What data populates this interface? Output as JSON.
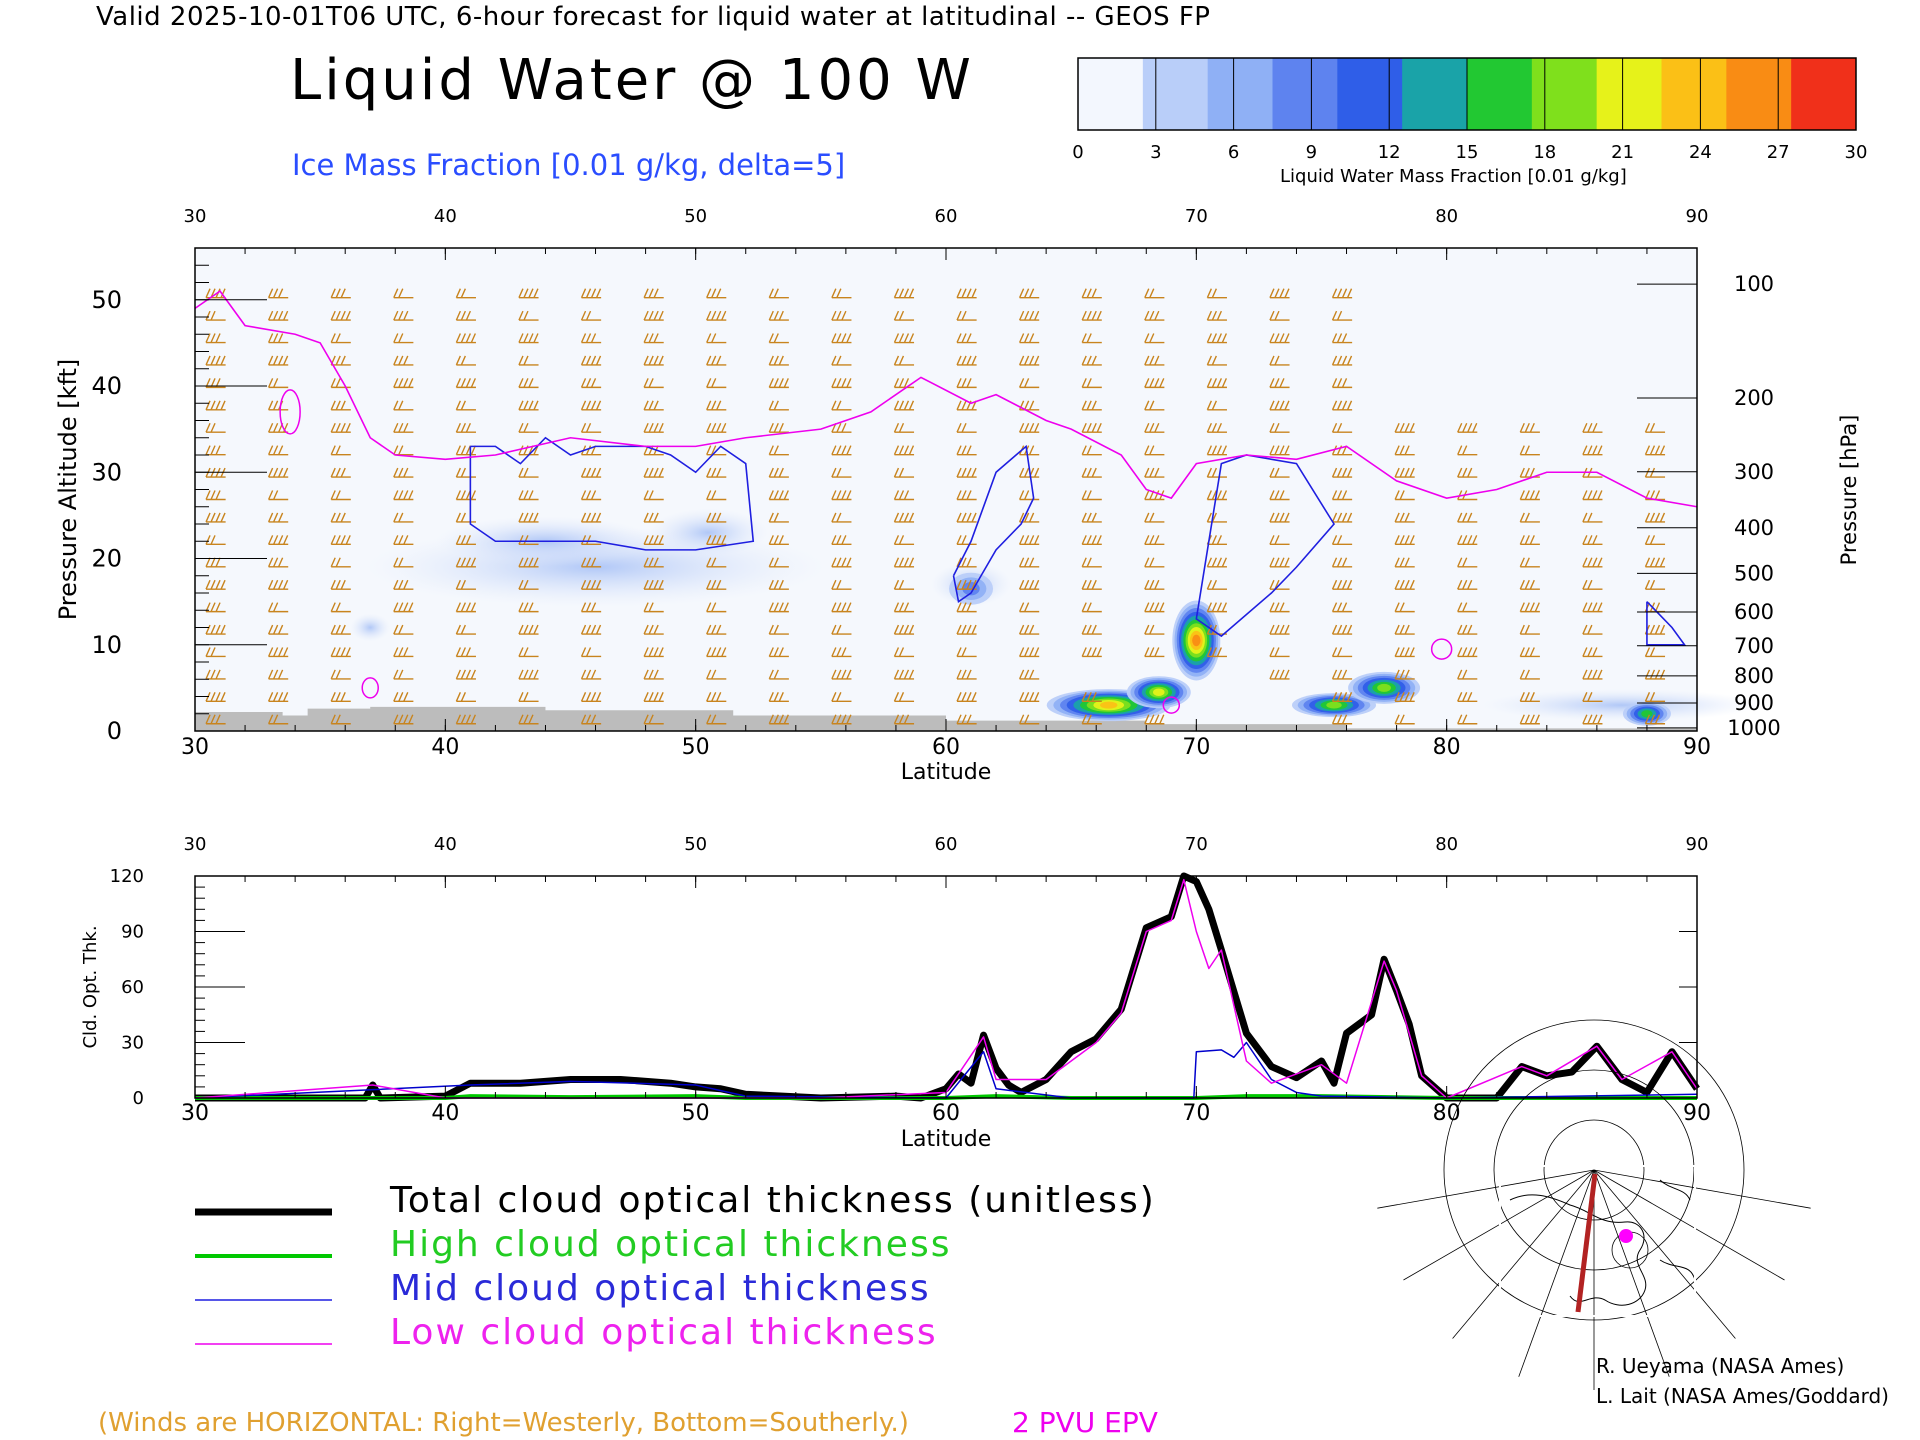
{
  "header": {
    "valid_line": "Valid 2025-10-01T06 UTC, 6-hour forecast for liquid water at latitudinal -- GEOS FP",
    "title": "Liquid Water @ 100 W",
    "subtitle": "Ice Mass Fraction [0.01 g/kg, delta=5]"
  },
  "colorbar": {
    "label": "Liquid Water Mass Fraction [0.01 g/kg]",
    "ticks": [
      "0",
      "3",
      "6",
      "9",
      "12",
      "15",
      "18",
      "21",
      "24",
      "27",
      "30"
    ],
    "colors": [
      "#f3f7fe",
      "#b9cef9",
      "#8fb0f5",
      "#5e83ef",
      "#2f5ee8",
      "#1aa3a8",
      "#22c832",
      "#7fe01c",
      "#e6f21a",
      "#fbc016",
      "#f98c14",
      "#f0301a"
    ]
  },
  "chart_data": [
    {
      "type": "heatmap",
      "title": "Liquid Water @ 100 W",
      "xlabel": "Latitude",
      "ylabel": "Pressure Altitude [kft]",
      "y2label": "Pressure [hPa]",
      "xlim": [
        30,
        90
      ],
      "ylim": [
        0,
        56
      ],
      "x_ticks": [
        "30",
        "40",
        "50",
        "60",
        "70",
        "80",
        "90"
      ],
      "y_ticks": [
        "0",
        "10",
        "20",
        "30",
        "40",
        "50"
      ],
      "pressure_ticks": [
        "100",
        "200",
        "300",
        "400",
        "500",
        "600",
        "700",
        "800",
        "900",
        "1000"
      ],
      "liquid_water_blobs": [
        {
          "lat": 66.5,
          "alt": 3.0,
          "peak": 24
        },
        {
          "lat": 68.5,
          "alt": 4.5,
          "peak": 21
        },
        {
          "lat": 70.0,
          "alt": 10.5,
          "peak": 27
        },
        {
          "lat": 75.5,
          "alt": 3.0,
          "peak": 18
        },
        {
          "lat": 77.5,
          "alt": 5.0,
          "peak": 18
        },
        {
          "lat": 88.0,
          "alt": 2.0,
          "peak": 15
        },
        {
          "lat": 61.0,
          "alt": 16.5,
          "peak": 9
        }
      ],
      "epv_2pvu": [
        [
          30,
          49
        ],
        [
          31,
          51
        ],
        [
          32,
          47
        ],
        [
          34,
          46
        ],
        [
          35,
          45
        ],
        [
          36,
          40
        ],
        [
          37,
          34
        ],
        [
          38,
          32
        ],
        [
          40,
          31.5
        ],
        [
          42,
          32
        ],
        [
          45,
          34
        ],
        [
          48,
          33
        ],
        [
          50,
          33
        ],
        [
          52,
          34
        ],
        [
          55,
          35
        ],
        [
          57,
          37
        ],
        [
          59,
          41
        ],
        [
          61,
          38
        ],
        [
          62,
          39
        ],
        [
          64,
          36
        ],
        [
          65,
          35
        ],
        [
          67,
          32
        ],
        [
          68,
          28
        ],
        [
          69,
          27
        ],
        [
          70,
          31
        ],
        [
          72,
          32
        ],
        [
          74,
          31.5
        ],
        [
          76,
          33
        ],
        [
          78,
          29
        ],
        [
          80,
          27
        ],
        [
          82,
          28
        ],
        [
          84,
          30
        ],
        [
          86,
          30
        ],
        [
          88,
          27
        ],
        [
          90,
          26
        ]
      ],
      "ice_contour_5": [
        [
          [
            41,
            33
          ],
          [
            42,
            33
          ],
          [
            43,
            31
          ],
          [
            44,
            34
          ],
          [
            45,
            32
          ],
          [
            46,
            33
          ],
          [
            48,
            33
          ],
          [
            49,
            32
          ],
          [
            50,
            30
          ],
          [
            51,
            33
          ],
          [
            52,
            31
          ],
          [
            52.3,
            22
          ],
          [
            50,
            21
          ],
          [
            48,
            21
          ],
          [
            46,
            22
          ],
          [
            44,
            22
          ],
          [
            42,
            22
          ],
          [
            41,
            24
          ],
          [
            41,
            33
          ]
        ],
        [
          [
            60.3,
            18
          ],
          [
            61,
            22
          ],
          [
            62,
            30
          ],
          [
            63.2,
            33
          ],
          [
            63.5,
            27
          ],
          [
            63,
            24
          ],
          [
            62,
            21
          ],
          [
            61,
            16
          ],
          [
            60.5,
            15
          ],
          [
            60.3,
            18
          ]
        ],
        [
          [
            70.5,
            22
          ],
          [
            71,
            31
          ],
          [
            72,
            32
          ],
          [
            74,
            31
          ],
          [
            75.5,
            24
          ],
          [
            74,
            19
          ],
          [
            73,
            16
          ],
          [
            71,
            11
          ],
          [
            70,
            13
          ],
          [
            70.5,
            22
          ]
        ],
        [
          [
            88,
            15
          ],
          [
            89,
            12
          ],
          [
            89.5,
            10
          ],
          [
            88,
            10
          ],
          [
            88,
            15
          ]
        ]
      ]
    },
    {
      "type": "line",
      "ylabel": "Cld. Opt. Thk.",
      "xlabel": "Latitude",
      "xlim": [
        30,
        90
      ],
      "ylim": [
        0,
        120
      ],
      "x_ticks": [
        "30",
        "40",
        "50",
        "60",
        "70",
        "80",
        "90"
      ],
      "y_ticks": [
        "0",
        "30",
        "60",
        "90",
        "120"
      ],
      "series": [
        {
          "name": "Total cloud optical thickness (unitless)",
          "color": "#000000",
          "x": [
            30,
            36.8,
            37.1,
            37.4,
            40,
            41,
            43,
            45,
            47,
            49,
            50,
            51,
            52,
            55,
            58,
            59,
            60,
            60.5,
            61,
            61.5,
            62,
            62.5,
            63,
            64,
            65,
            66,
            67,
            68,
            69,
            69.5,
            70,
            70.5,
            71,
            72,
            73,
            74,
            75,
            75.5,
            76,
            77,
            77.5,
            78,
            78.5,
            79,
            80,
            82,
            83,
            84,
            85,
            86,
            87,
            88,
            89,
            89.5,
            90
          ],
          "y": [
            0,
            0,
            7,
            0,
            1,
            8,
            8,
            10,
            10,
            8,
            6,
            5,
            2,
            0,
            1,
            0,
            5,
            13,
            8,
            34,
            16,
            7,
            3,
            10,
            25,
            32,
            48,
            92,
            98,
            120,
            117,
            102,
            80,
            35,
            17,
            11,
            20,
            8,
            35,
            45,
            75,
            58,
            40,
            12,
            0,
            0,
            17,
            12,
            14,
            28,
            10,
            3,
            25,
            15,
            5
          ]
        },
        {
          "name": "High cloud optical thickness",
          "color": "#00c800",
          "x": [
            30,
            40,
            41,
            45,
            50,
            52,
            60,
            62,
            65,
            70,
            72,
            75,
            80,
            90
          ],
          "y": [
            0,
            0,
            1,
            0.5,
            1,
            0,
            0,
            1,
            0,
            0,
            1,
            1,
            0,
            0
          ]
        },
        {
          "name": "Mid cloud optical thickness",
          "color": "#0000cc",
          "x": [
            30,
            41,
            45,
            50,
            52,
            60,
            61.5,
            62,
            65,
            69.9,
            70,
            71,
            71.5,
            72,
            73,
            74,
            75,
            80,
            90
          ],
          "y": [
            0,
            7,
            9,
            7,
            1,
            0,
            25,
            5,
            0,
            0,
            25,
            26,
            22,
            30,
            10,
            3,
            1,
            0,
            2
          ]
        },
        {
          "name": "Low cloud optical thickness",
          "color": "#ee00ee",
          "x": [
            30,
            37.1,
            40,
            45,
            50,
            55,
            60,
            61.5,
            62,
            64,
            66,
            67,
            68,
            69,
            69.5,
            70,
            70.5,
            71,
            72,
            73,
            75,
            76,
            77.5,
            78,
            79,
            80,
            83,
            84,
            86,
            87,
            89,
            90
          ],
          "y": [
            0,
            7,
            0,
            0,
            0,
            0,
            3,
            33,
            10,
            10,
            30,
            46,
            90,
            96,
            118,
            90,
            70,
            80,
            20,
            8,
            18,
            8,
            74,
            58,
            12,
            0,
            17,
            12,
            28,
            10,
            25,
            5
          ]
        }
      ]
    }
  ],
  "legend": [
    {
      "label": "Total cloud optical thickness (unitless)",
      "color": "#000000",
      "stroke": 7
    },
    {
      "label": "High cloud optical thickness",
      "color": "#00c800",
      "stroke": 4
    },
    {
      "label": "Mid cloud optical thickness",
      "color": "#1f1fe0",
      "stroke": 1.5
    },
    {
      "label": "Low cloud optical thickness",
      "color": "#ee00ee",
      "stroke": 1.5
    }
  ],
  "footer": {
    "winds_note": "(Winds are HORIZONTAL: Right=Westerly, Bottom=Southerly.)",
    "epv_note": "2 PVU EPV",
    "credit1": "R. Ueyama (NASA Ames)",
    "credit2": "L. Lait (NASA Ames/Goddard)"
  },
  "colors": {
    "wind": "#c8841e",
    "epv": "#ee00ee",
    "ice": "#1f1fe0",
    "terrain": "#bcbcbc",
    "track": "#b22222",
    "marker": "#ff00ff"
  }
}
